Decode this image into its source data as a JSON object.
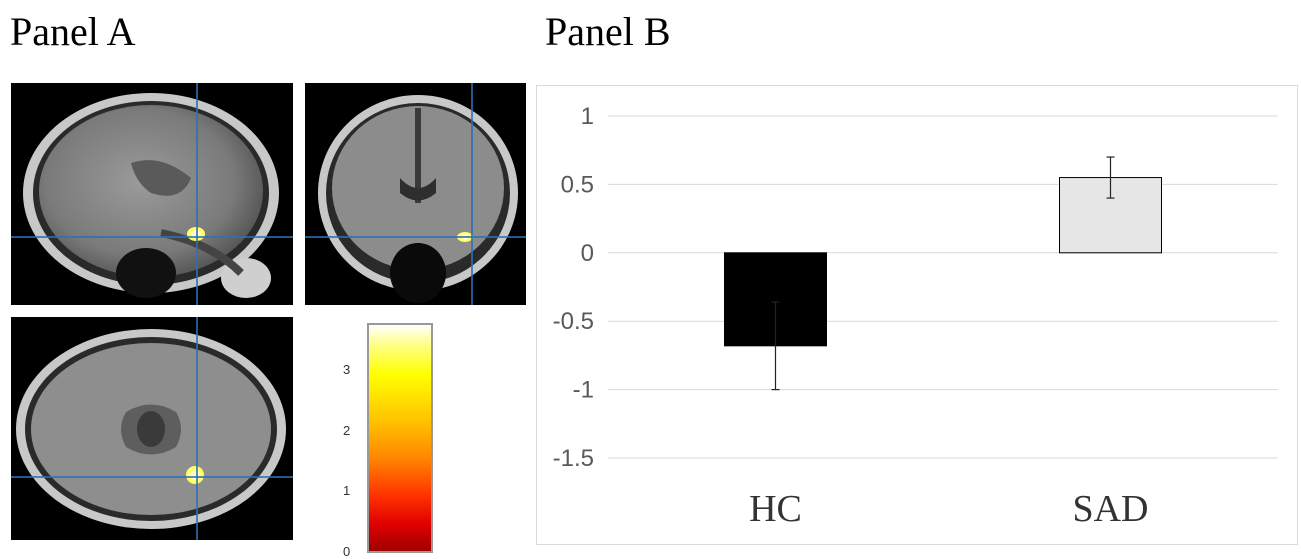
{
  "panels": {
    "a_title": "Panel A",
    "b_title": "Panel B"
  },
  "colorbar": {
    "ticks": [
      "3",
      "2",
      "1",
      "0"
    ],
    "values": [
      3,
      2,
      1,
      0
    ],
    "range": [
      0,
      3.8
    ]
  },
  "chart_data": {
    "type": "bar",
    "categories": [
      "HC",
      "SAD"
    ],
    "values": [
      -0.68,
      0.55
    ],
    "error": [
      0.32,
      0.15
    ],
    "colors": [
      "#000000",
      "#e6e6e6"
    ],
    "title": "",
    "xlabel": "",
    "ylabel": "",
    "ylim": [
      -1.5,
      1
    ],
    "yticks": [
      1,
      0.5,
      0,
      -0.5,
      -1,
      -1.5
    ],
    "ytick_labels": [
      "1",
      "0.5",
      "0",
      "-0.5",
      "-1",
      "-1.5"
    ],
    "grid": true,
    "legend": "none"
  }
}
